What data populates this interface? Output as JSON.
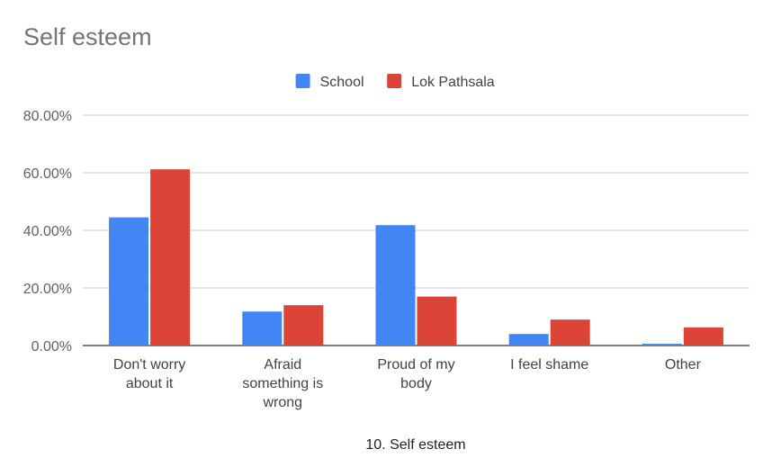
{
  "chart_data": {
    "type": "bar",
    "title": "Self esteem",
    "xlabel": "10. Self esteem",
    "ylabel": "",
    "categories": [
      [
        "Don't worry",
        "about it"
      ],
      [
        "Afraid",
        "something is",
        "wrong"
      ],
      [
        "Proud of my",
        "body"
      ],
      [
        "I feel shame"
      ],
      [
        "Other"
      ]
    ],
    "series": [
      {
        "name": "School",
        "color": "#4285f4",
        "values": [
          44.5,
          11.8,
          41.8,
          4.0,
          0.6
        ]
      },
      {
        "name": "Lok Pathsala",
        "color": "#db4437",
        "values": [
          61.2,
          14.0,
          17.0,
          9.0,
          6.3
        ]
      }
    ],
    "ylim": [
      0,
      80
    ],
    "yticks": [
      "0.00%",
      "20.00%",
      "40.00%",
      "60.00%",
      "80.00%"
    ],
    "grid": true,
    "legend_position": "top-center"
  }
}
